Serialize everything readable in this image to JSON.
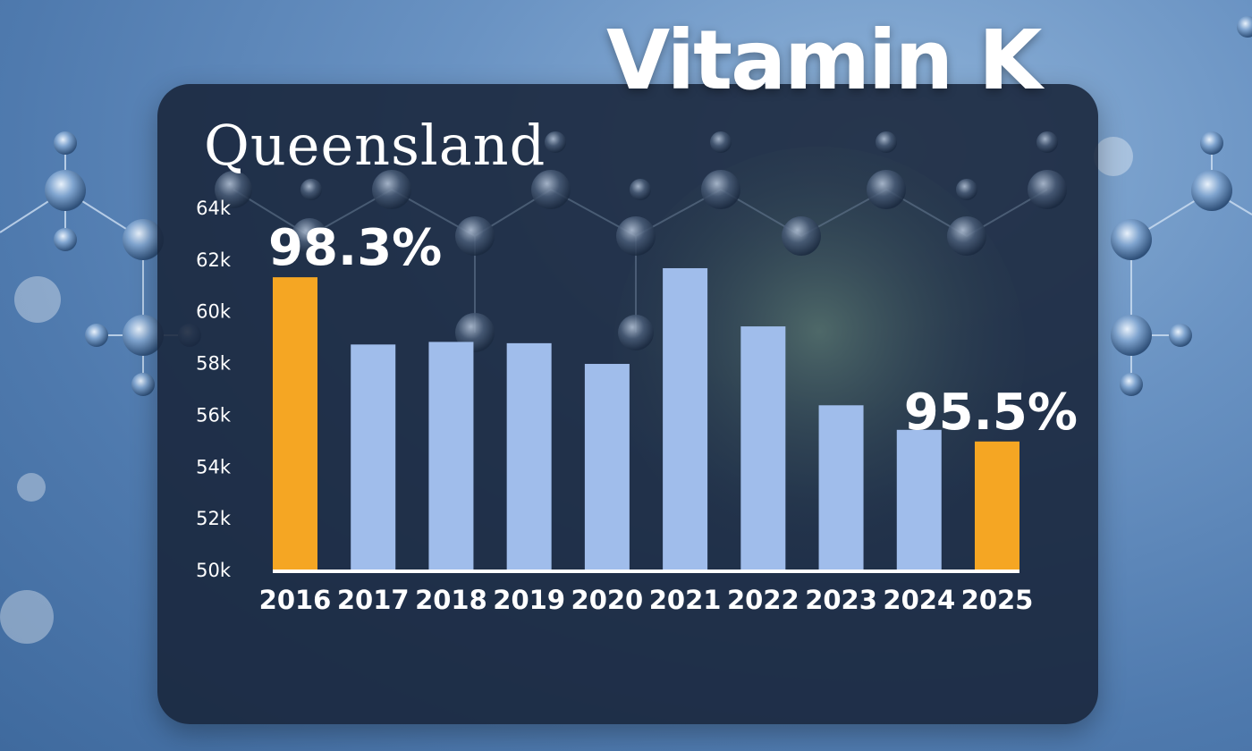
{
  "headline": "Vitamin K",
  "chart_data": {
    "type": "bar",
    "title": "Queensland",
    "categories": [
      "2016",
      "2017",
      "2018",
      "2019",
      "2020",
      "2021",
      "2022",
      "2023",
      "2024",
      "2025"
    ],
    "values": [
      61300,
      58700,
      58800,
      58750,
      57950,
      61650,
      59400,
      56350,
      55400,
      54950
    ],
    "highlight": [
      0,
      9
    ],
    "annotations": [
      {
        "category": "2016",
        "text": "98.3%"
      },
      {
        "category": "2025",
        "text": "95.5%"
      }
    ],
    "yticks": [
      "50k",
      "52k",
      "54k",
      "56k",
      "58k",
      "60k",
      "62k",
      "64k"
    ],
    "ylim": [
      50000,
      64000
    ],
    "xlabel": "",
    "ylabel": "",
    "grid": false,
    "colors": {
      "bar": "#a0bdeb",
      "highlight": "#f5a623",
      "axis": "#ffffff"
    }
  }
}
